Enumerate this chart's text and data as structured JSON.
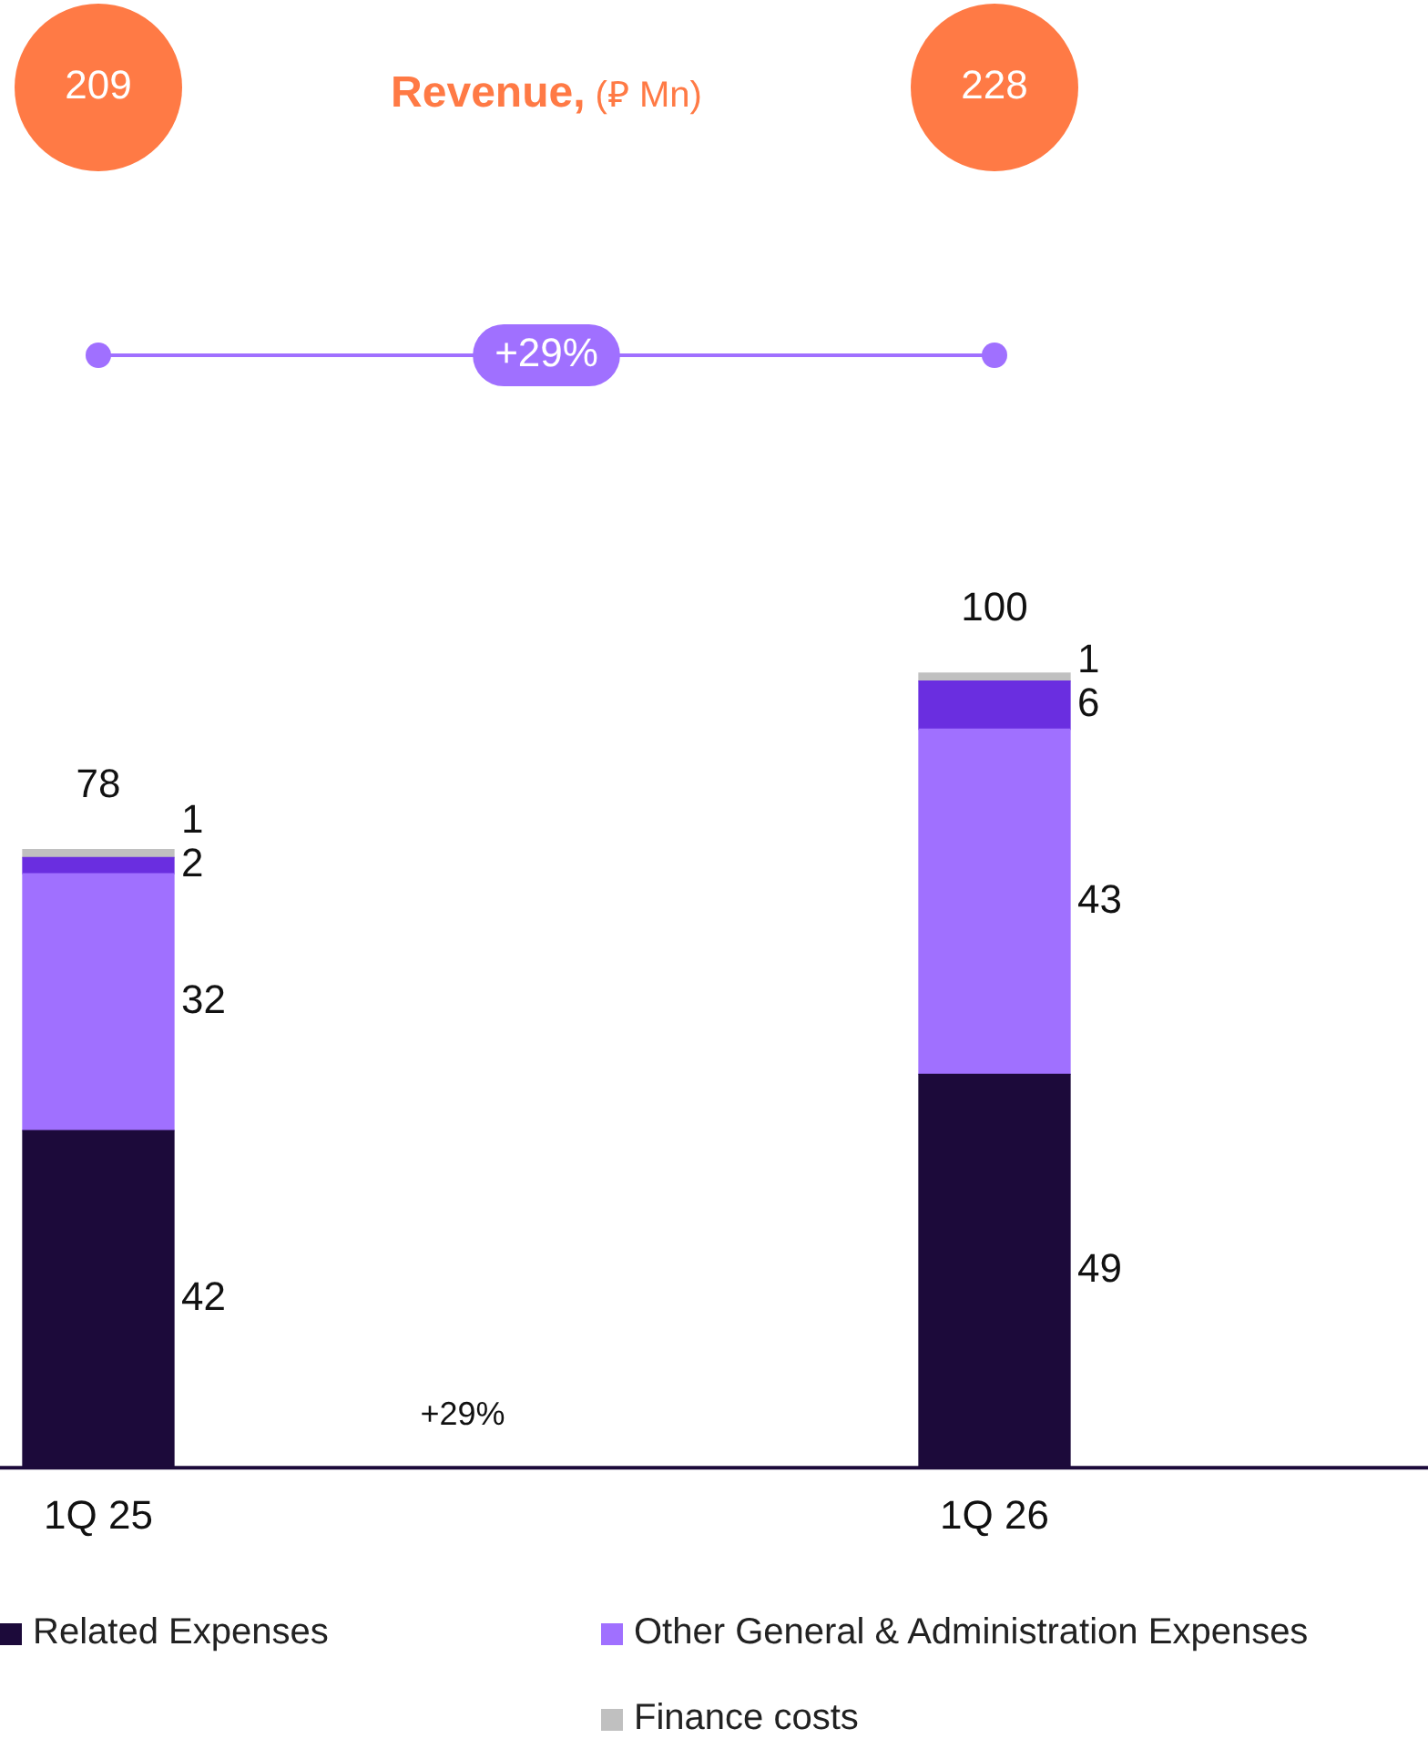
{
  "chart_data": {
    "type": "bar",
    "stacked": true,
    "title": "Revenue, (⃁ Mn)",
    "categories": [
      "1Q 25",
      "1Q 26"
    ],
    "series": [
      {
        "name": "Related Expenses",
        "color": "#1c0a3a",
        "values": [
          42,
          49
        ]
      },
      {
        "name": "Other General & Administration Expenses",
        "color": "#a070ff",
        "values": [
          32,
          43
        ]
      },
      {
        "color": "#6a2ee0",
        "values": [
          2,
          6
        ]
      },
      {
        "name": "Finance costs",
        "color": "#c0c0c0",
        "values": [
          1,
          1
        ]
      }
    ],
    "data_labels": true,
    "totals": [
      "78",
      "100"
    ],
    "legend": "bottom",
    "annotations": [
      "209",
      "228",
      "+29%",
      "+29%"
    ]
  }
}
